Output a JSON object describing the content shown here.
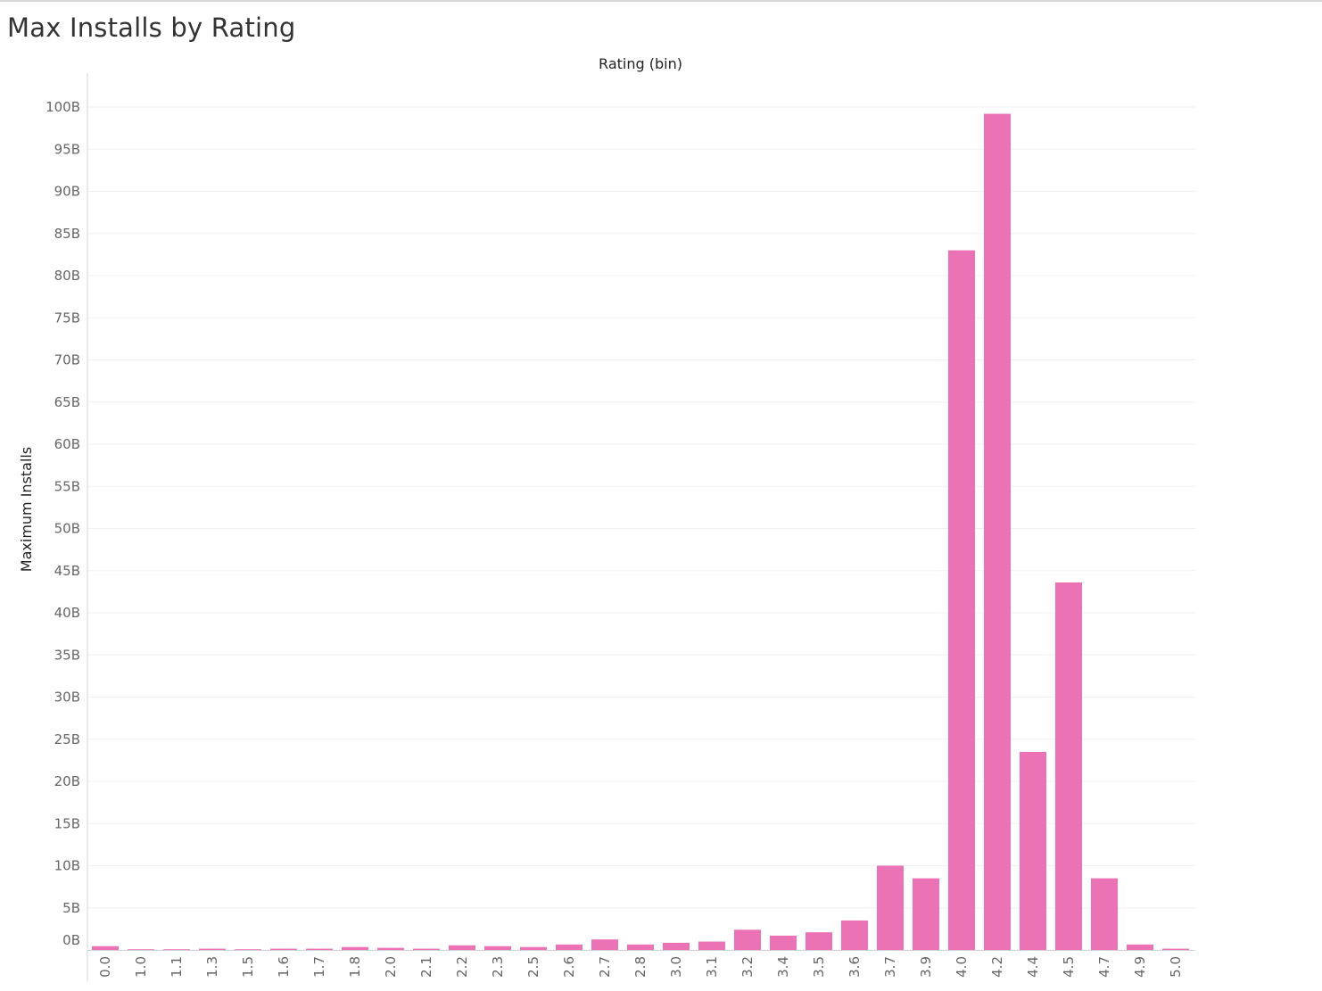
{
  "title": "Max Installs by Rating",
  "chart_data": {
    "type": "bar",
    "title": "Max Installs by Rating",
    "xlabel": "Rating (bin)",
    "ylabel": "Maximum Installs",
    "x_axis_position": "top",
    "ylim": [
      0,
      100
    ],
    "y_unit": "B",
    "y_ticks": [
      "0B",
      "5B",
      "10B",
      "15B",
      "20B",
      "25B",
      "30B",
      "35B",
      "40B",
      "45B",
      "50B",
      "55B",
      "60B",
      "65B",
      "70B",
      "75B",
      "80B",
      "85B",
      "90B",
      "95B",
      "100B"
    ],
    "categories": [
      "0.0",
      "1.0",
      "1.1",
      "1.3",
      "1.5",
      "1.6",
      "1.7",
      "1.8",
      "2.0",
      "2.1",
      "2.2",
      "2.3",
      "2.5",
      "2.6",
      "2.7",
      "2.8",
      "3.0",
      "3.1",
      "3.2",
      "3.4",
      "3.5",
      "3.6",
      "3.7",
      "3.9",
      "4.0",
      "4.2",
      "4.4",
      "4.5",
      "4.7",
      "4.9",
      "5.0"
    ],
    "values": [
      0.45,
      0.02,
      0.02,
      0.15,
      0.02,
      0.15,
      0.15,
      0.35,
      0.25,
      0.15,
      0.55,
      0.45,
      0.35,
      0.65,
      1.25,
      0.65,
      0.85,
      1.0,
      2.4,
      1.7,
      2.1,
      3.5,
      10.0,
      8.5,
      83.0,
      99.2,
      23.5,
      43.6,
      8.5,
      0.65,
      0.15
    ],
    "bar_color": "#eb72b4",
    "grid": true,
    "legend": "none"
  }
}
